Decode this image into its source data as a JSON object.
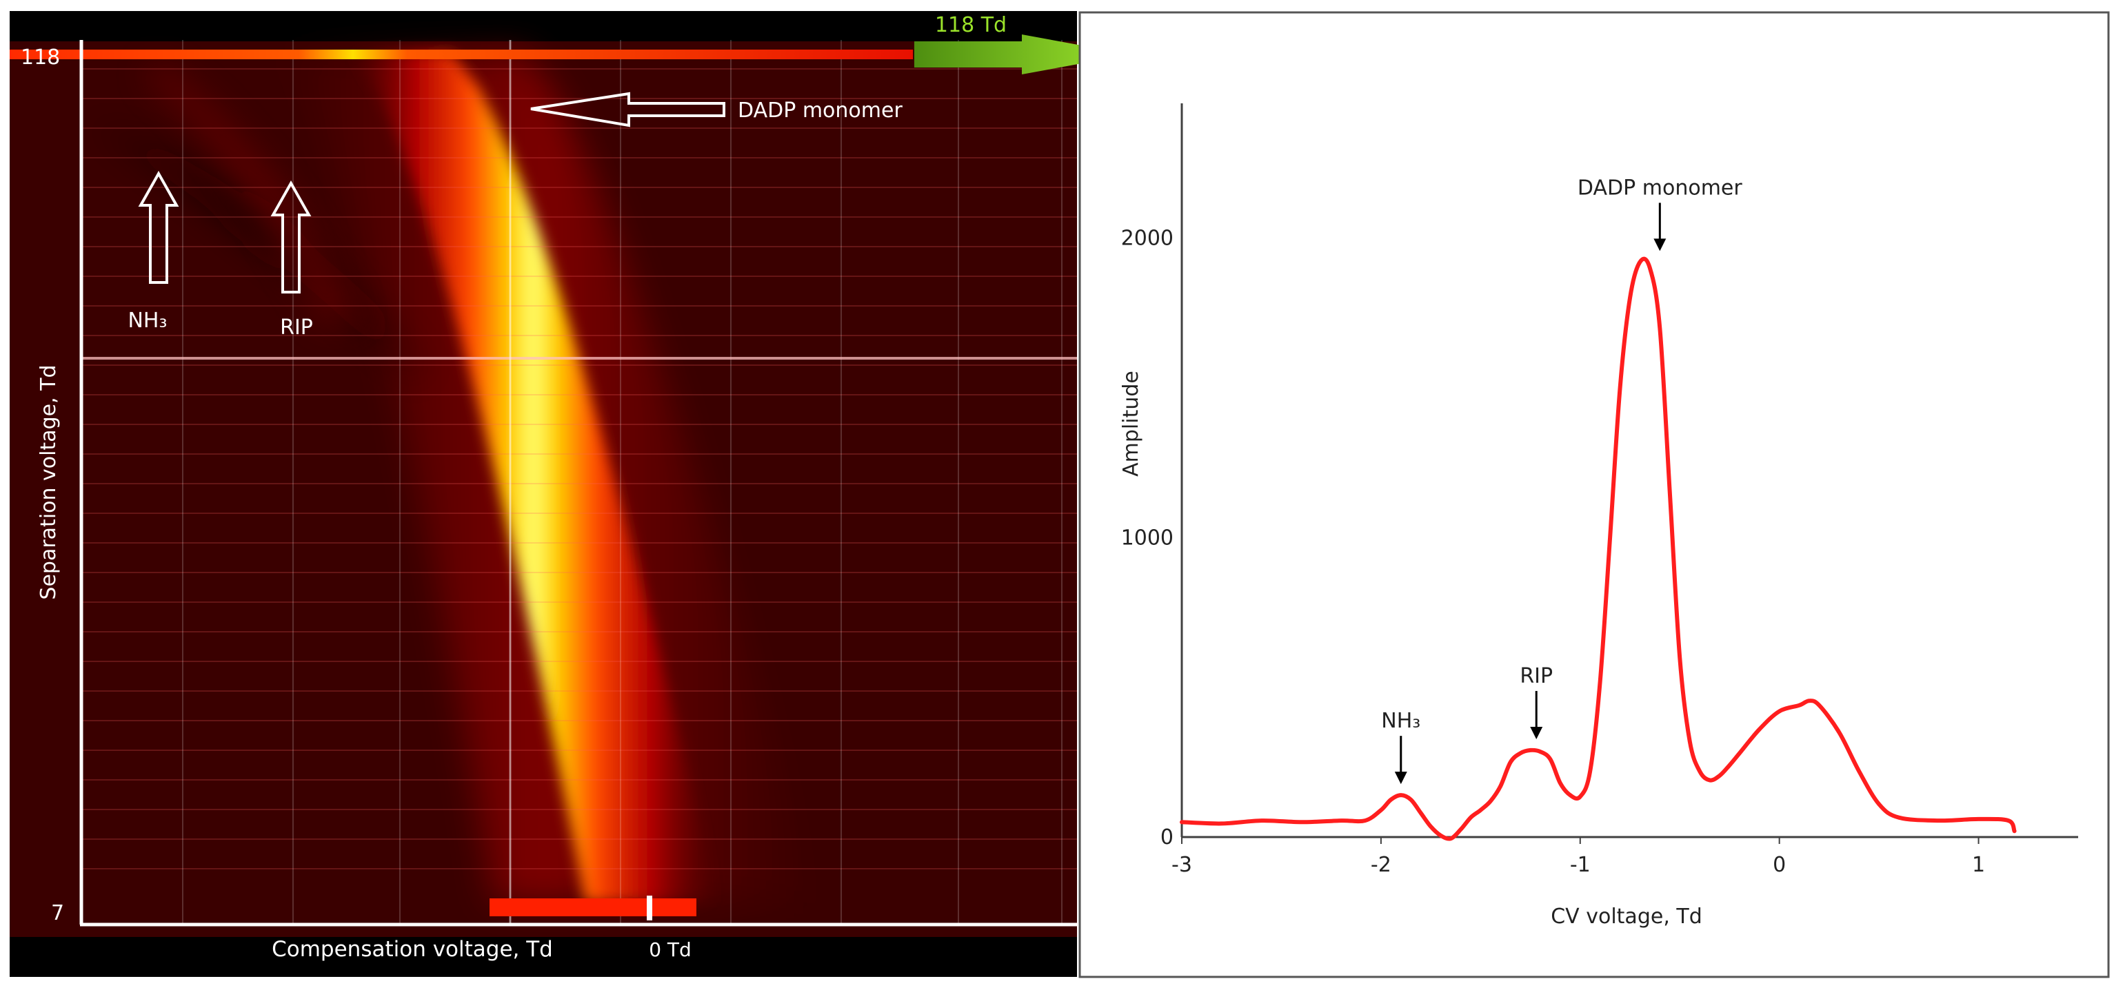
{
  "colors": {
    "heat_background": "#3a0000",
    "curve": "#ff1e1e",
    "arrow_green": "#8fd11f",
    "label_green": "#9be32a",
    "frame": "#555555"
  },
  "heatmap": {
    "label_top": "118",
    "label_bottom": "7",
    "ylabel": "Separation voltage, Td",
    "xlabel": "Compensation voltage, Td",
    "zero_label": "0 Td",
    "pointer_label": "118 Td",
    "annotations": {
      "dadp": "DADP monomer",
      "nh3": "NH₃",
      "rip": "RIP"
    }
  },
  "chart_data": {
    "type": "line",
    "title": "",
    "xlabel": "CV voltage, Td",
    "ylabel": "Amplitude",
    "xlim": [
      -3,
      1.5
    ],
    "ylim": [
      0,
      2450
    ],
    "xticks": [
      -3,
      -2,
      -1,
      0,
      1
    ],
    "yticks": [
      0,
      1000,
      2000
    ],
    "grid": false,
    "series": [
      {
        "x": [
          -3.0,
          -2.8,
          -2.6,
          -2.4,
          -2.2,
          -2.08,
          -2.0,
          -1.95,
          -1.9,
          -1.85,
          -1.8,
          -1.75,
          -1.7,
          -1.65,
          -1.6,
          -1.55,
          -1.5,
          -1.45,
          -1.4,
          -1.35,
          -1.3,
          -1.25,
          -1.2,
          -1.15,
          -1.1,
          -1.05,
          -1.0,
          -0.95,
          -0.9,
          -0.85,
          -0.8,
          -0.75,
          -0.7,
          -0.65,
          -0.6,
          -0.55,
          -0.5,
          -0.45,
          -0.4,
          -0.35,
          -0.3,
          -0.25,
          -0.2,
          -0.1,
          0.0,
          0.1,
          0.15,
          0.2,
          0.3,
          0.4,
          0.5,
          0.6,
          0.8,
          1.0,
          1.15,
          1.18
        ],
        "y": [
          50,
          45,
          55,
          50,
          55,
          55,
          90,
          125,
          140,
          125,
          80,
          35,
          5,
          -5,
          25,
          65,
          90,
          120,
          170,
          250,
          280,
          290,
          285,
          260,
          180,
          140,
          135,
          220,
          520,
          1000,
          1500,
          1800,
          1920,
          1900,
          1700,
          1150,
          600,
          320,
          220,
          190,
          205,
          240,
          280,
          360,
          420,
          440,
          455,
          440,
          350,
          220,
          110,
          65,
          55,
          60,
          55,
          20
        ]
      }
    ],
    "annotations": [
      {
        "text": "NH₃",
        "x": -1.9,
        "y": 140
      },
      {
        "text": "RIP",
        "x": -1.22,
        "y": 290
      },
      {
        "text": "DADP monomer",
        "x": -0.6,
        "y": 1920
      }
    ]
  }
}
